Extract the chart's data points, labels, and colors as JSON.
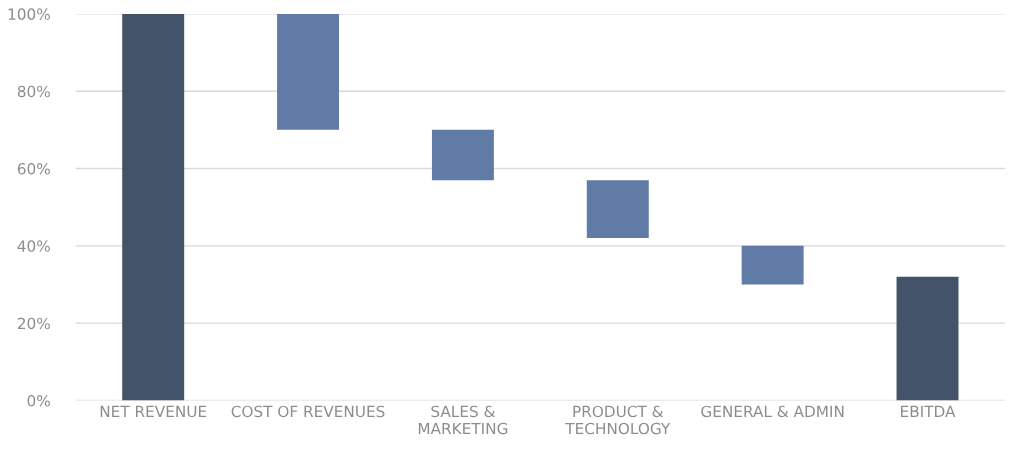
{
  "chart_data": {
    "type": "bar",
    "categories": [
      "NET REVENUE",
      "COST OF REVENUES",
      "SALES &\nMARKETING",
      "PRODUCT &\nTECHNOLOGY",
      "GENERAL & ADMIN",
      "EBITDA"
    ],
    "values": [
      100,
      30,
      13,
      15,
      10,
      32
    ],
    "base": [
      0,
      70,
      57,
      42,
      30,
      0
    ],
    "colors": [
      "#435369",
      "#5f7ba6",
      "#5f7ba6",
      "#5f7ba6",
      "#5f7ba6",
      "#435369"
    ],
    "ylim": [
      0,
      100
    ],
    "yticks": [
      {
        "value": 0,
        "label": "0%"
      },
      {
        "value": 20,
        "label": "20%"
      },
      {
        "value": 40,
        "label": "40%"
      },
      {
        "value": 60,
        "label": "60%"
      },
      {
        "value": 80,
        "label": "80%"
      },
      {
        "value": 100,
        "label": "100%"
      }
    ],
    "grid": "y"
  }
}
